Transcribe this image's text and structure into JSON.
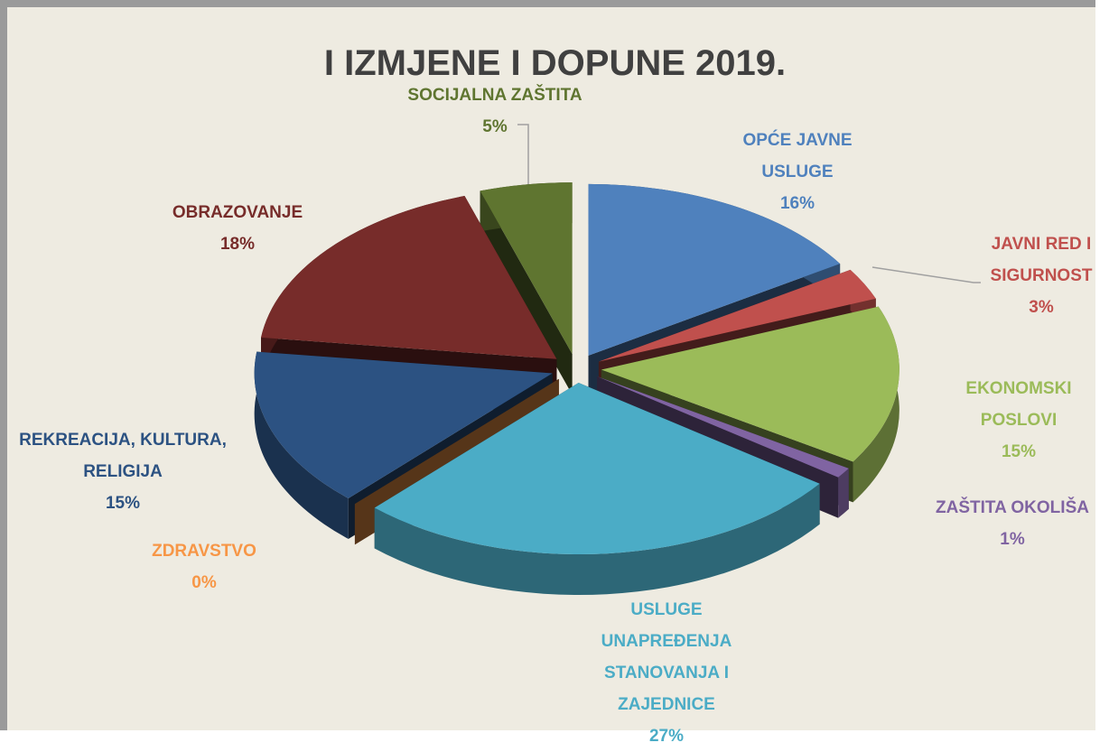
{
  "chart_data": {
    "type": "pie3d",
    "title": "I IZMJENE I DOPUNE 2019.",
    "categories": [
      "OPĆE JAVNE USLUGE",
      "JAVNI RED I SIGURNOST",
      "EKONOMSKI POSLOVI",
      "ZAŠTITA OKOLIŠA",
      "USLUGE UNAPREĐENJA STANOVANJA I ZAJEDNICE",
      "ZDRAVSTVO",
      "REKREACIJA, KULTURA, RELIGIJA",
      "OBRAZOVANJE",
      "SOCIJALNA ZAŠTITA"
    ],
    "values": [
      16,
      3,
      15,
      1,
      27,
      0,
      15,
      18,
      5
    ],
    "value_labels": [
      "16%",
      "3%",
      "15%",
      "1%",
      "27%",
      "0%",
      "15%",
      "18%",
      "5%"
    ],
    "colors": [
      "#4f81bd",
      "#c0504d",
      "#9bbb59",
      "#8064a2",
      "#4bacc6",
      "#f79646",
      "#2c5282",
      "#772c2a",
      "#5f7530"
    ]
  }
}
